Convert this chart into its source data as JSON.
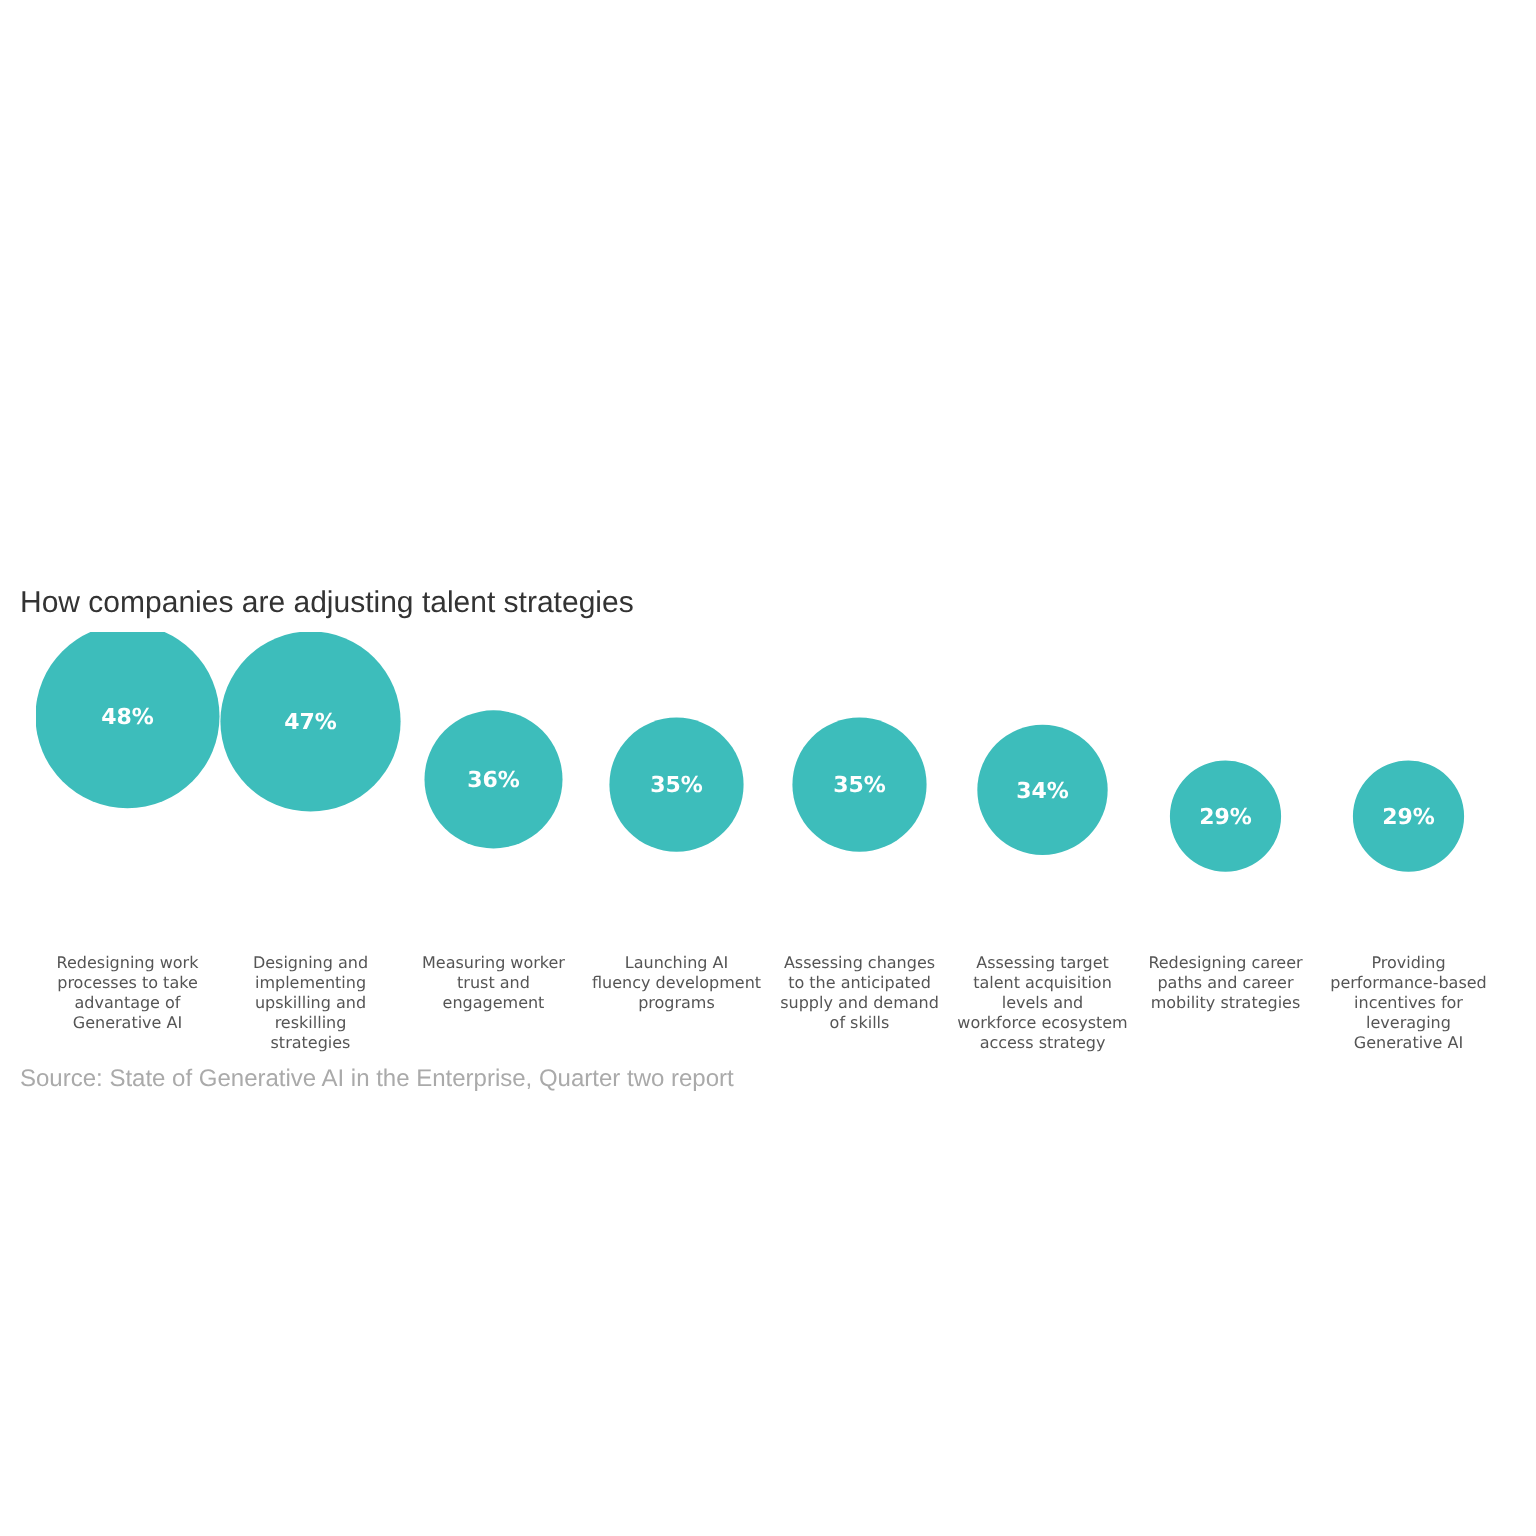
{
  "chart_data": {
    "type": "other",
    "title": "How companies are adjusting talent strategies",
    "categories": [
      "Redesigning work processes to take advantage of Generative AI",
      "Designing and implementing upskilling and reskilling strategies",
      "Measuring worker trust and engagement",
      "Launching AI fluency development programs",
      "Assessing changes to the anticipated supply and demand of skills",
      "Assessing target talent acquisition levels and workforce ecosystem access strategy",
      "Redesigning career paths and career mobility strategies",
      "Providing performance-based incentives for leveraging Generative AI"
    ],
    "values": [
      48,
      47,
      36,
      35,
      35,
      34,
      29,
      29
    ],
    "value_labels": [
      "48%",
      "47%",
      "36%",
      "35%",
      "35%",
      "34%",
      "29%",
      "29%"
    ],
    "color": "#3dbdbb",
    "annotations": [
      "Source: State of Generative AI in the Enterprise, Quarter two report"
    ]
  }
}
